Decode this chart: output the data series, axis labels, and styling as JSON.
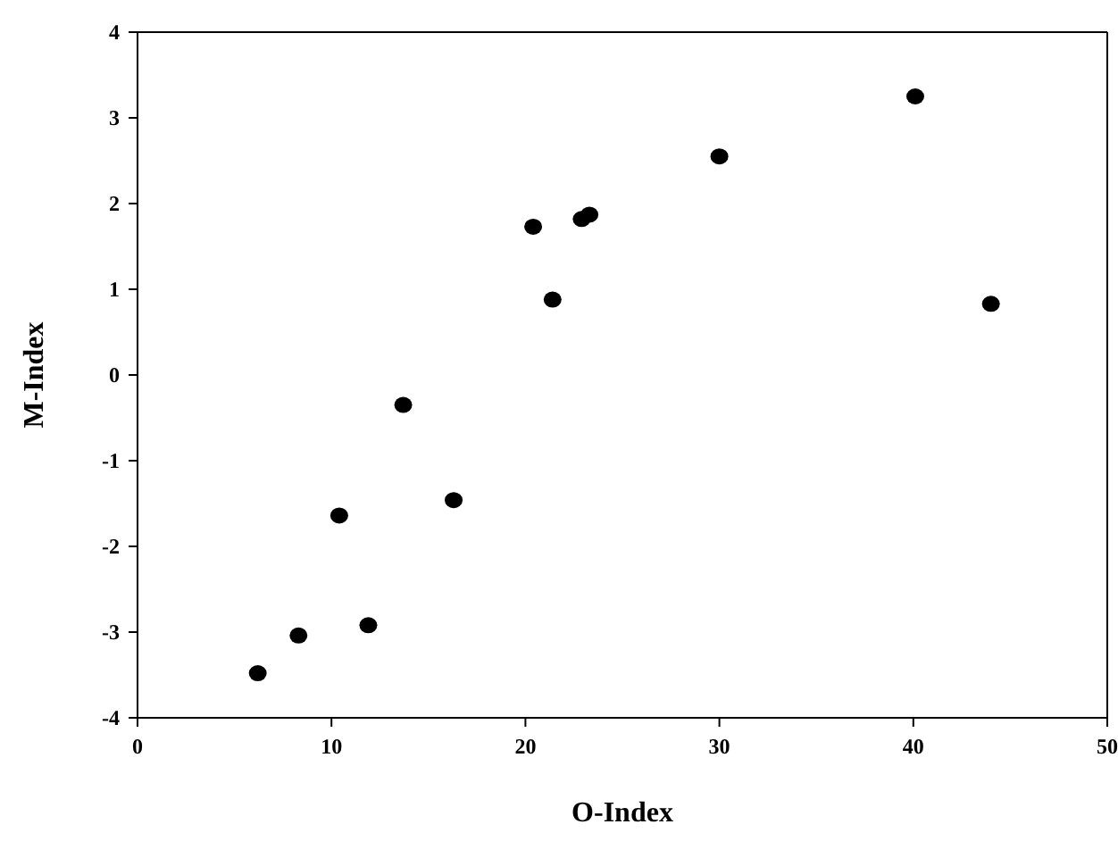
{
  "chart_data": {
    "type": "scatter",
    "xlabel": "O-Index",
    "ylabel": "M-Index",
    "x": [
      6.2,
      8.3,
      10.4,
      11.9,
      13.7,
      16.3,
      20.4,
      21.4,
      22.9,
      23.3,
      30.0,
      40.1,
      44.0
    ],
    "series": [
      {
        "color": "#000000",
        "values": [
          -3.48,
          -3.04,
          -1.64,
          -2.92,
          -0.35,
          -1.46,
          1.73,
          0.88,
          1.82,
          1.87,
          2.55,
          3.25,
          0.83
        ]
      }
    ],
    "xlim": [
      0,
      50
    ],
    "xticks": [
      0,
      10,
      20,
      30,
      40,
      50
    ],
    "ylim": [
      -4,
      4
    ],
    "yticks": [
      -4,
      -3,
      -2,
      -1,
      0,
      1,
      2,
      3,
      4
    ],
    "grid": false,
    "marker": "circle"
  }
}
